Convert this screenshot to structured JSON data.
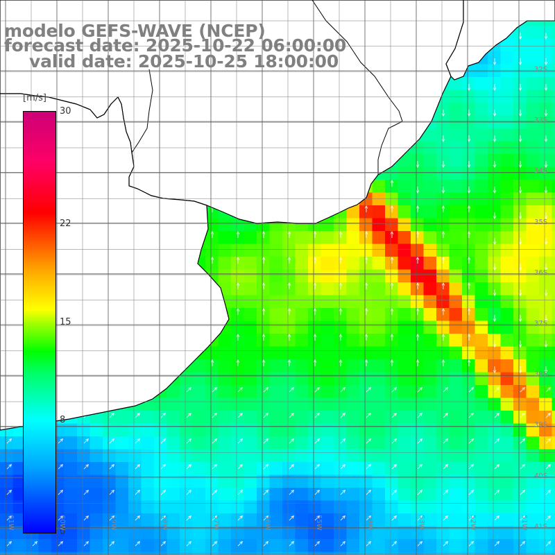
{
  "header": {
    "line1": "modelo GEFS-WAVE (NCEP)",
    "line2": "forecast date: 2025-10-22 06:00:00",
    "line3": "valid date: 2025-10-25 18:00:00"
  },
  "colorbar": {
    "unit": "[m/s]",
    "ticks": [
      {
        "value": 30,
        "label": "30"
      },
      {
        "value": 22,
        "label": "22"
      },
      {
        "value": 15,
        "label": "15"
      },
      {
        "value": 8,
        "label": "8"
      },
      {
        "value": 0,
        "label": "0"
      }
    ],
    "range": [
      0,
      30
    ]
  },
  "map": {
    "lat_labels": [
      {
        "lat": -32,
        "label": "32S"
      },
      {
        "lat": -33,
        "label": "33S"
      },
      {
        "lat": -34,
        "label": "34S"
      },
      {
        "lat": -35,
        "label": "35S"
      },
      {
        "lat": -36,
        "label": "36S"
      },
      {
        "lat": -37,
        "label": "37S"
      },
      {
        "lat": -38,
        "label": "38S"
      },
      {
        "lat": -39,
        "label": "39S"
      },
      {
        "lat": -40,
        "label": "40S"
      },
      {
        "lat": -41,
        "label": "41S"
      }
    ],
    "lon_labels": [
      {
        "lon": -61,
        "label": "61W"
      },
      {
        "lon": -60,
        "label": "60W"
      },
      {
        "lon": -59,
        "label": "59W"
      },
      {
        "lon": -58,
        "label": "58W"
      },
      {
        "lon": -57,
        "label": "57W"
      },
      {
        "lon": -56,
        "label": "56W"
      },
      {
        "lon": -55,
        "label": "55W"
      },
      {
        "lon": -54,
        "label": "54W"
      },
      {
        "lon": -53,
        "label": "53W"
      },
      {
        "lon": -52,
        "label": "52W"
      },
      {
        "lon": -51,
        "label": "51W"
      }
    ],
    "field": "wind speed",
    "colors": {
      "land": "#ffffff",
      "grid": "#555555",
      "coast": "#000000",
      "arrow": "#ffffff"
    }
  }
}
